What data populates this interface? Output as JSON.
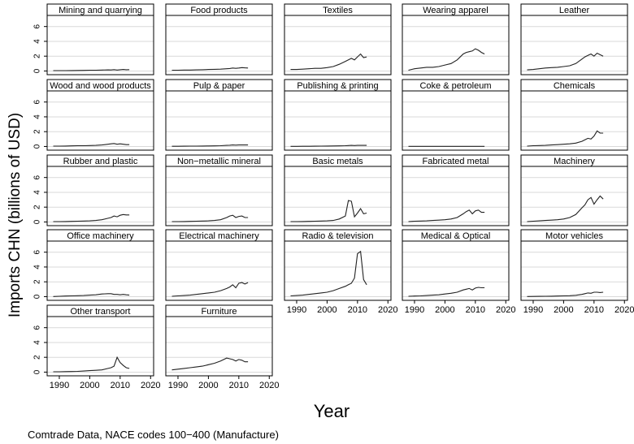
{
  "ylabel": "Imports CHN (billions of USD)",
  "xlabel": "Year",
  "note": "Comtrade Data, NACE codes 100−400 (Manufacture)",
  "chart_data": {
    "type": "line",
    "layout": "small-multiples",
    "grid": true,
    "ylabel": "Imports CHN (billions of USD)",
    "xlabel": "Year",
    "xlim": [
      1986,
      2021
    ],
    "ylim": [
      -0.5,
      7.5
    ],
    "xticks": [
      "1990",
      "2000",
      "2010",
      "2020"
    ],
    "yticks": [
      "0",
      "2",
      "4",
      "6"
    ],
    "x": [
      1988,
      1990,
      1992,
      1994,
      1996,
      1998,
      2000,
      2002,
      2004,
      2006,
      2007,
      2008,
      2009,
      2010,
      2011,
      2012,
      2013
    ],
    "panels": [
      {
        "name": "Mining and quarrying",
        "values": [
          0.05,
          0.05,
          0.05,
          0.06,
          0.07,
          0.08,
          0.1,
          0.1,
          0.12,
          0.15,
          0.14,
          0.18,
          0.12,
          0.17,
          0.2,
          0.17,
          0.18
        ]
      },
      {
        "name": "Food products",
        "values": [
          0.1,
          0.1,
          0.12,
          0.13,
          0.15,
          0.17,
          0.2,
          0.22,
          0.25,
          0.3,
          0.33,
          0.4,
          0.35,
          0.4,
          0.45,
          0.42,
          0.4
        ]
      },
      {
        "name": "Textiles",
        "values": [
          0.2,
          0.2,
          0.25,
          0.3,
          0.35,
          0.35,
          0.45,
          0.6,
          0.9,
          1.3,
          1.5,
          1.7,
          1.5,
          1.9,
          2.3,
          1.8,
          1.9
        ]
      },
      {
        "name": "Wearing apparel",
        "values": [
          0.1,
          0.3,
          0.4,
          0.5,
          0.5,
          0.6,
          0.8,
          1.0,
          1.5,
          2.3,
          2.5,
          2.6,
          2.7,
          3.0,
          2.8,
          2.5,
          2.3
        ]
      },
      {
        "name": "Leather",
        "values": [
          0.15,
          0.2,
          0.3,
          0.4,
          0.45,
          0.5,
          0.6,
          0.7,
          1.0,
          1.6,
          1.9,
          2.1,
          2.3,
          2.0,
          2.4,
          2.2,
          2.0
        ]
      },
      {
        "name": "Wood and wood products",
        "values": [
          0.05,
          0.05,
          0.06,
          0.08,
          0.1,
          0.1,
          0.12,
          0.15,
          0.2,
          0.3,
          0.35,
          0.4,
          0.3,
          0.35,
          0.3,
          0.25,
          0.25
        ]
      },
      {
        "name": "Pulp & paper",
        "values": [
          0.03,
          0.03,
          0.04,
          0.05,
          0.05,
          0.06,
          0.07,
          0.08,
          0.1,
          0.15,
          0.17,
          0.2,
          0.18,
          0.2,
          0.2,
          0.2,
          0.2
        ]
      },
      {
        "name": "Publishing & printing",
        "values": [
          0.02,
          0.02,
          0.03,
          0.03,
          0.04,
          0.05,
          0.06,
          0.07,
          0.08,
          0.1,
          0.12,
          0.15,
          0.12,
          0.15,
          0.15,
          0.15,
          0.15
        ]
      },
      {
        "name": "Coke & petroleum",
        "values": [
          0.01,
          0.01,
          0.01,
          0.01,
          0.01,
          0.01,
          0.01,
          0.01,
          0.02,
          0.02,
          0.02,
          0.02,
          0.02,
          0.02,
          0.02,
          0.02,
          0.02
        ]
      },
      {
        "name": "Chemicals",
        "values": [
          0.05,
          0.1,
          0.12,
          0.15,
          0.2,
          0.25,
          0.3,
          0.35,
          0.45,
          0.7,
          0.9,
          1.1,
          1.0,
          1.4,
          2.1,
          1.8,
          1.8
        ]
      },
      {
        "name": "Rubber and plastic",
        "values": [
          0.05,
          0.05,
          0.06,
          0.08,
          0.1,
          0.12,
          0.15,
          0.2,
          0.3,
          0.5,
          0.6,
          0.8,
          0.7,
          0.9,
          1.0,
          0.95,
          0.95
        ]
      },
      {
        "name": "Non−metallic mineral",
        "values": [
          0.05,
          0.05,
          0.06,
          0.08,
          0.1,
          0.12,
          0.15,
          0.2,
          0.3,
          0.6,
          0.8,
          0.9,
          0.6,
          0.75,
          0.8,
          0.6,
          0.6
        ]
      },
      {
        "name": "Basic metals",
        "values": [
          0.05,
          0.05,
          0.06,
          0.08,
          0.1,
          0.12,
          0.15,
          0.2,
          0.4,
          0.8,
          2.9,
          2.8,
          0.7,
          1.2,
          1.8,
          1.1,
          1.2
        ]
      },
      {
        "name": "Fabricated metal",
        "values": [
          0.05,
          0.1,
          0.12,
          0.15,
          0.2,
          0.25,
          0.3,
          0.4,
          0.6,
          1.1,
          1.4,
          1.6,
          1.1,
          1.5,
          1.6,
          1.3,
          1.3
        ]
      },
      {
        "name": "Machinery",
        "values": [
          0.05,
          0.1,
          0.15,
          0.2,
          0.25,
          0.3,
          0.4,
          0.6,
          1.0,
          1.9,
          2.3,
          3.0,
          3.3,
          2.4,
          3.0,
          3.5,
          3.1
        ]
      },
      {
        "name": "Office machinery",
        "values": [
          0.02,
          0.05,
          0.08,
          0.1,
          0.12,
          0.15,
          0.2,
          0.25,
          0.35,
          0.4,
          0.4,
          0.3,
          0.3,
          0.25,
          0.3,
          0.25,
          0.2
        ]
      },
      {
        "name": "Electrical machinery",
        "values": [
          0.05,
          0.1,
          0.15,
          0.2,
          0.3,
          0.4,
          0.5,
          0.6,
          0.8,
          1.1,
          1.3,
          1.6,
          1.2,
          1.8,
          1.9,
          1.7,
          1.9
        ]
      },
      {
        "name": "Radio & television",
        "values": [
          0.1,
          0.15,
          0.2,
          0.3,
          0.4,
          0.5,
          0.6,
          0.8,
          1.1,
          1.4,
          1.6,
          1.8,
          2.5,
          5.8,
          6.1,
          2.3,
          1.6
        ]
      },
      {
        "name": "Medical & Optical",
        "values": [
          0.05,
          0.08,
          0.1,
          0.15,
          0.2,
          0.25,
          0.35,
          0.45,
          0.6,
          0.9,
          1.0,
          1.1,
          0.9,
          1.15,
          1.25,
          1.2,
          1.2
        ]
      },
      {
        "name": "Motor vehicles",
        "values": [
          0.02,
          0.03,
          0.04,
          0.05,
          0.06,
          0.08,
          0.1,
          0.12,
          0.18,
          0.3,
          0.4,
          0.5,
          0.45,
          0.6,
          0.6,
          0.55,
          0.6
        ]
      },
      {
        "name": "Other transport",
        "values": [
          0.05,
          0.05,
          0.07,
          0.08,
          0.1,
          0.15,
          0.2,
          0.25,
          0.3,
          0.5,
          0.6,
          0.8,
          2.0,
          1.3,
          0.9,
          0.6,
          0.5
        ]
      },
      {
        "name": "Furniture",
        "values": [
          0.3,
          0.4,
          0.5,
          0.6,
          0.7,
          0.8,
          1.0,
          1.2,
          1.5,
          1.9,
          1.8,
          1.7,
          1.5,
          1.7,
          1.6,
          1.4,
          1.4
        ]
      }
    ]
  }
}
